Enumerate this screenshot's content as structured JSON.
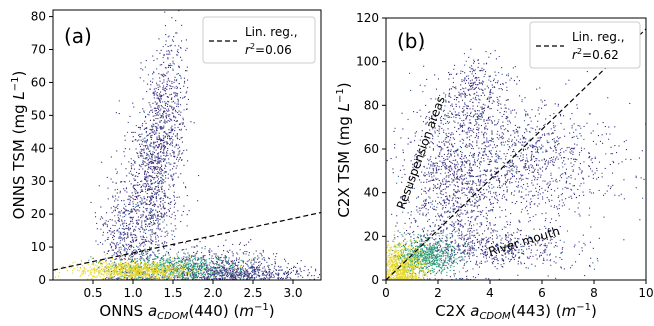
{
  "chart_data": [
    {
      "type": "scatter",
      "panel_label": "(a)",
      "xlabel_main": "ONNS ",
      "xlabel_sym": "a",
      "xlabel_sub": "CDOM",
      "xlabel_tail": "(440) (",
      "xlabel_unit": "m",
      "xlabel_unit_exp": "−1",
      "xlabel_close": ")",
      "ylabel_main": "ONNS TSM (mg ",
      "ylabel_unit": "L",
      "ylabel_unit_exp": "−1",
      "ylabel_close": ")",
      "xlim": [
        0.0,
        3.35
      ],
      "ylim": [
        0,
        82
      ],
      "xticks": [
        0.5,
        1.0,
        1.5,
        2.0,
        2.5,
        3.0
      ],
      "xtick_labels": [
        "0.5",
        "1.0",
        "1.5",
        "2.0",
        "2.5",
        "3.0"
      ],
      "yticks": [
        0,
        10,
        20,
        30,
        40,
        50,
        60,
        70,
        80
      ],
      "ytick_labels": [
        "0",
        "10",
        "20",
        "30",
        "40",
        "50",
        "60",
        "70",
        "80"
      ],
      "grid": false,
      "legend_placement": "top-right",
      "legend_line1": "Lin. reg.,",
      "legend_r_sym": "r",
      "legend_r_exp": "2",
      "legend_r_val": "=0.06",
      "regression": {
        "x": [
          0.0,
          3.35
        ],
        "y": [
          3.0,
          20.5
        ]
      },
      "density_clusters": [
        {
          "x": 1.0,
          "y": 3.0,
          "sx": 0.35,
          "sy": 1.5,
          "n": 900,
          "c": "yellow"
        },
        {
          "x": 1.5,
          "y": 4.0,
          "sx": 0.4,
          "sy": 2.0,
          "n": 700,
          "c": "green"
        },
        {
          "x": 2.3,
          "y": 2.0,
          "sx": 0.5,
          "sy": 1.5,
          "n": 600,
          "c": "purple"
        },
        {
          "x": 1.2,
          "y": 25.0,
          "sx": 0.18,
          "sy": 12.0,
          "n": 900,
          "c": "purple"
        },
        {
          "x": 1.3,
          "y": 45.0,
          "sx": 0.1,
          "sy": 10.0,
          "n": 400,
          "c": "purple"
        },
        {
          "x": 1.5,
          "y": 55.0,
          "sx": 0.1,
          "sy": 12.0,
          "n": 300,
          "c": "purple"
        },
        {
          "x": 0.85,
          "y": 12.0,
          "sx": 0.15,
          "sy": 8.0,
          "n": 400,
          "c": "purple"
        },
        {
          "x": 2.0,
          "y": 5.0,
          "sx": 0.4,
          "sy": 3.0,
          "n": 400,
          "c": "purple"
        }
      ]
    },
    {
      "type": "scatter",
      "panel_label": "(b)",
      "xlabel_main": "C2X ",
      "xlabel_sym": "a",
      "xlabel_sub": "CDOM",
      "xlabel_tail": "(443) (",
      "xlabel_unit": "m",
      "xlabel_unit_exp": "−1",
      "xlabel_close": ")",
      "ylabel_main": "C2X TSM (mg ",
      "ylabel_unit": "L",
      "ylabel_unit_exp": "−1",
      "ylabel_close": ")",
      "xlim": [
        0,
        10
      ],
      "ylim": [
        0,
        120
      ],
      "xticks": [
        0,
        2,
        4,
        6,
        8,
        10
      ],
      "xtick_labels": [
        "0",
        "2",
        "4",
        "6",
        "8",
        "10"
      ],
      "yticks": [
        0,
        20,
        40,
        60,
        80,
        100,
        120
      ],
      "ytick_labels": [
        "0",
        "20",
        "40",
        "60",
        "80",
        "100",
        "120"
      ],
      "grid": false,
      "legend_placement": "top-right",
      "legend_line1": "Lin. reg.,",
      "legend_r_sym": "r",
      "legend_r_exp": "2",
      "legend_r_val": "=0.62",
      "regression": {
        "x": [
          0,
          10
        ],
        "y": [
          0,
          115
        ]
      },
      "annotations": [
        {
          "text": "Resuspension areas",
          "x": 0.7,
          "y": 32,
          "angle": -70
        },
        {
          "text": "River mouth",
          "x": 4.0,
          "y": 11,
          "angle": -17
        }
      ],
      "density_clusters": [
        {
          "x": 0.5,
          "y": 6.0,
          "sx": 0.45,
          "sy": 5.0,
          "n": 900,
          "c": "yellow"
        },
        {
          "x": 1.5,
          "y": 11.0,
          "sx": 0.6,
          "sy": 4.0,
          "n": 700,
          "c": "green"
        },
        {
          "x": 2.5,
          "y": 45.0,
          "sx": 0.9,
          "sy": 22.0,
          "n": 1100,
          "c": "purple"
        },
        {
          "x": 4.5,
          "y": 55.0,
          "sx": 1.6,
          "sy": 14.0,
          "n": 800,
          "c": "purple"
        },
        {
          "x": 4.0,
          "y": 15.0,
          "sx": 1.7,
          "sy": 5.0,
          "n": 600,
          "c": "purple"
        },
        {
          "x": 6.5,
          "y": 55.0,
          "sx": 1.4,
          "sy": 12.0,
          "n": 400,
          "c": "purple"
        },
        {
          "x": 3.5,
          "y": 85.0,
          "sx": 0.6,
          "sy": 8.0,
          "n": 300,
          "c": "purple"
        }
      ]
    }
  ],
  "colors": {
    "purple": "#3b2a7a",
    "blue": "#2f5a9a",
    "green": "#2a9d7a",
    "yellow": "#e6d72a",
    "regression_line": "#000000"
  }
}
